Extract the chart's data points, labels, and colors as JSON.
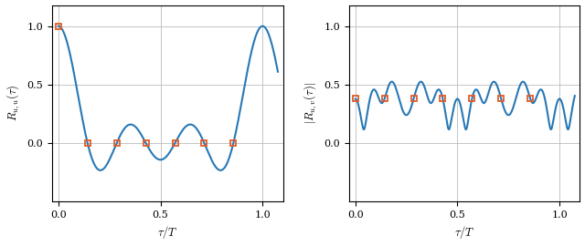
{
  "N": 7,
  "u": 1,
  "v": 2,
  "line_color": "#2878b5",
  "marker_color": "#e05c2a",
  "marker_style": "s",
  "marker_size": 5,
  "marker_linewidth": 1.3,
  "line_width": 1.5,
  "ylabel_left": "$R_{u,u}(\\tau)$",
  "ylabel_right": "$|R_{u,v}(\\tau)|$",
  "xlabel": "$\\tau/T$",
  "xlim": [
    -0.03,
    1.1
  ],
  "ylim_left": [
    -0.5,
    1.18
  ],
  "ylim_right": [
    -0.5,
    1.18
  ],
  "xticks": [
    0,
    0.5,
    1
  ],
  "yticks_left": [
    0,
    0.5,
    1
  ],
  "yticks_right": [
    0,
    0.5,
    1
  ],
  "grid_color": "#bbbbbb",
  "grid_linewidth": 0.6,
  "background": "#ffffff"
}
